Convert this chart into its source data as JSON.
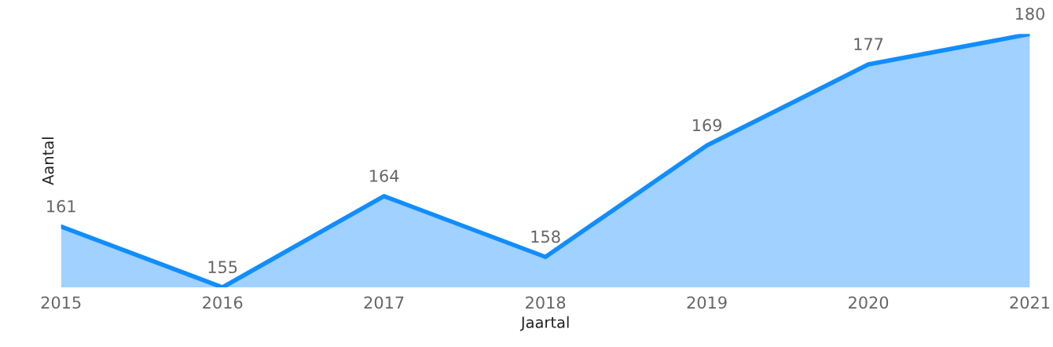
{
  "chart_data": {
    "type": "area",
    "xlabel": "Jaartal",
    "ylabel": "Aantal",
    "categories": [
      "2015",
      "2016",
      "2017",
      "2018",
      "2019",
      "2020",
      "2021"
    ],
    "series": [
      {
        "color": "#118dff",
        "values": [
          161,
          155,
          164,
          158,
          169,
          177,
          180
        ]
      }
    ],
    "tick_labels": "x",
    "data_labels": true,
    "grid": false,
    "legend": false
  }
}
